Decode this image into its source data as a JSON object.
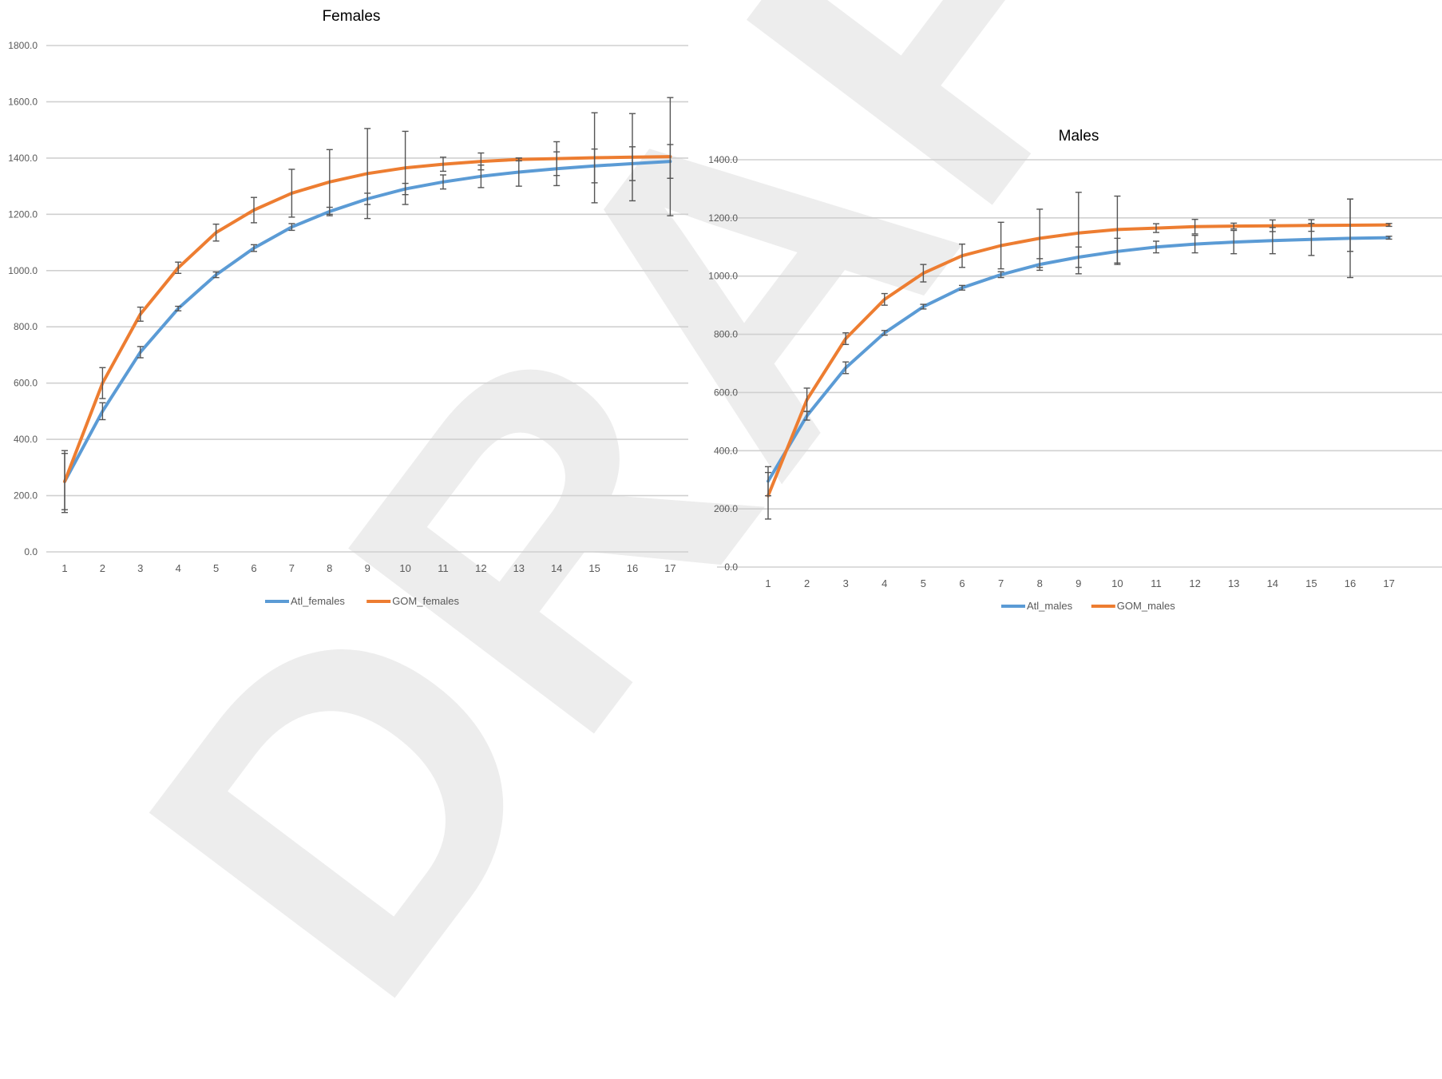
{
  "watermark": "DRAFT",
  "colors": {
    "atl": "#5b9bd5",
    "gom": "#ed7d31",
    "grid": "#d0d0d0",
    "errorbar": "#555555",
    "text": "#595959"
  },
  "chart_data": [
    {
      "type": "line",
      "title": "Females",
      "xlabel": "",
      "ylabel": "",
      "ylim": [
        0,
        1800
      ],
      "yticks": [
        "0.0",
        "200.0",
        "400.0",
        "600.0",
        "800.0",
        "1000.0",
        "1200.0",
        "1400.0",
        "1600.0",
        "1800.0"
      ],
      "categories": [
        "1",
        "2",
        "3",
        "4",
        "5",
        "6",
        "7",
        "8",
        "9",
        "10",
        "11",
        "12",
        "13",
        "14",
        "15",
        "16",
        "17"
      ],
      "grid": true,
      "legend": "bottom",
      "series": [
        {
          "name": "Atl_females",
          "color": "#5b9bd5",
          "values": [
            250,
            500,
            710,
            865,
            985,
            1080,
            1155,
            1210,
            1255,
            1290,
            1315,
            1335,
            1350,
            1362,
            1372,
            1380,
            1388
          ],
          "err": [
            100,
            30,
            20,
            8,
            10,
            12,
            12,
            15,
            20,
            20,
            25,
            40,
            50,
            60,
            60,
            60,
            60
          ]
        },
        {
          "name": "GOM_females",
          "color": "#ed7d31",
          "values": [
            250,
            600,
            845,
            1010,
            1135,
            1215,
            1275,
            1315,
            1345,
            1365,
            1378,
            1388,
            1395,
            1398,
            1401,
            1403,
            1405
          ],
          "err": [
            110,
            55,
            25,
            20,
            30,
            45,
            85,
            115,
            160,
            130,
            25,
            30,
            5,
            60,
            160,
            155,
            210
          ]
        }
      ]
    },
    {
      "type": "line",
      "title": "Males",
      "xlabel": "",
      "ylabel": "",
      "ylim": [
        0,
        1400
      ],
      "yticks": [
        "0.0",
        "200.0",
        "400.0",
        "600.0",
        "800.0",
        "1000.0",
        "1200.0",
        "1400.0"
      ],
      "categories": [
        "1",
        "2",
        "3",
        "4",
        "5",
        "6",
        "7",
        "8",
        "9",
        "10",
        "11",
        "12",
        "13",
        "14",
        "15",
        "16",
        "17"
      ],
      "grid": true,
      "legend": "bottom",
      "series": [
        {
          "name": "Atl_males",
          "color": "#5b9bd5",
          "values": [
            295,
            520,
            685,
            805,
            895,
            960,
            1005,
            1040,
            1065,
            1085,
            1100,
            1110,
            1117,
            1122,
            1126,
            1130,
            1132
          ],
          "err": [
            50,
            15,
            20,
            8,
            8,
            8,
            10,
            20,
            35,
            45,
            20,
            30,
            40,
            45,
            55,
            135,
            5
          ]
        },
        {
          "name": "GOM_males",
          "color": "#ed7d31",
          "values": [
            245,
            575,
            785,
            920,
            1010,
            1070,
            1105,
            1130,
            1148,
            1160,
            1165,
            1170,
            1172,
            1173,
            1174,
            1175,
            1176
          ],
          "err": [
            80,
            40,
            20,
            20,
            30,
            40,
            80,
            100,
            140,
            115,
            15,
            25,
            10,
            20,
            20,
            90,
            5
          ]
        }
      ]
    }
  ]
}
